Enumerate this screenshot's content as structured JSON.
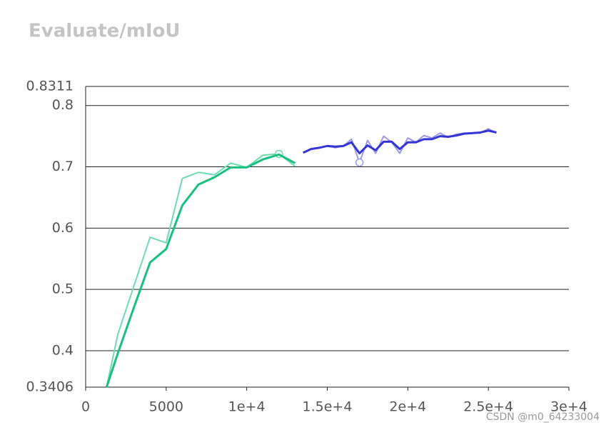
{
  "chart_data": {
    "type": "line",
    "title": "Evaluate/mIoU",
    "watermark": "CSDN @m0_64233004",
    "xlim": [
      0,
      30000
    ],
    "xticks": [
      0,
      5000,
      {
        "value": 10000,
        "label": "1e+4"
      },
      {
        "value": 15000,
        "label": "1.5e+4"
      },
      {
        "value": 20000,
        "label": "2e+4"
      },
      {
        "value": 25000,
        "label": "2.5e+4"
      },
      {
        "value": 30000,
        "label": "3e+4"
      }
    ],
    "ylim": [
      0.3406,
      0.8311
    ],
    "yticks": [
      0.3406,
      0.4,
      0.5,
      0.6,
      0.7,
      0.8,
      0.8311
    ],
    "grid": true,
    "series": [
      {
        "color": "#6ddcb2",
        "width": 2,
        "highlight": 11,
        "x": [
          1300,
          2000,
          3000,
          4000,
          5000,
          6000,
          7000,
          8000,
          9000,
          10000,
          11000,
          12000,
          13000
        ],
        "values": [
          0.3406,
          0.427,
          0.506,
          0.585,
          0.576,
          0.681,
          0.691,
          0.687,
          0.706,
          0.699,
          0.719,
          0.721,
          0.701
        ]
      },
      {
        "color": "#19c07f",
        "width": 3,
        "x": [
          1300,
          2000,
          3000,
          4000,
          5000,
          6000,
          7000,
          8000,
          9000,
          10000,
          11000,
          12000,
          13000
        ],
        "values": [
          0.3406,
          0.396,
          0.471,
          0.544,
          0.566,
          0.637,
          0.671,
          0.683,
          0.699,
          0.699,
          0.712,
          0.72,
          0.706
        ]
      },
      {
        "color": "#9a9ae8",
        "width": 2,
        "highlight": 7,
        "x": [
          13500,
          14000,
          14500,
          15000,
          15500,
          16000,
          16500,
          17000,
          17500,
          18000,
          18500,
          19000,
          19500,
          20000,
          20500,
          21000,
          21500,
          22000,
          22500,
          23000,
          23500,
          24000,
          24500,
          25000,
          25500
        ],
        "values": [
          0.723,
          0.729,
          0.731,
          0.734,
          0.731,
          0.734,
          0.745,
          0.707,
          0.743,
          0.722,
          0.75,
          0.74,
          0.722,
          0.747,
          0.74,
          0.751,
          0.747,
          0.755,
          0.748,
          0.753,
          0.755,
          0.755,
          0.755,
          0.762,
          0.755
        ]
      },
      {
        "color": "#3535d6",
        "width": 3,
        "x": [
          13500,
          14000,
          14500,
          15000,
          15500,
          16000,
          16500,
          17000,
          17500,
          18000,
          18500,
          19000,
          19500,
          20000,
          20500,
          21000,
          21500,
          22000,
          22500,
          23000,
          23500,
          24000,
          24500,
          25000,
          25500
        ],
        "values": [
          0.723,
          0.729,
          0.731,
          0.734,
          0.733,
          0.734,
          0.74,
          0.722,
          0.735,
          0.727,
          0.741,
          0.741,
          0.729,
          0.74,
          0.74,
          0.745,
          0.745,
          0.75,
          0.749,
          0.751,
          0.754,
          0.755,
          0.756,
          0.759,
          0.756
        ]
      }
    ]
  }
}
